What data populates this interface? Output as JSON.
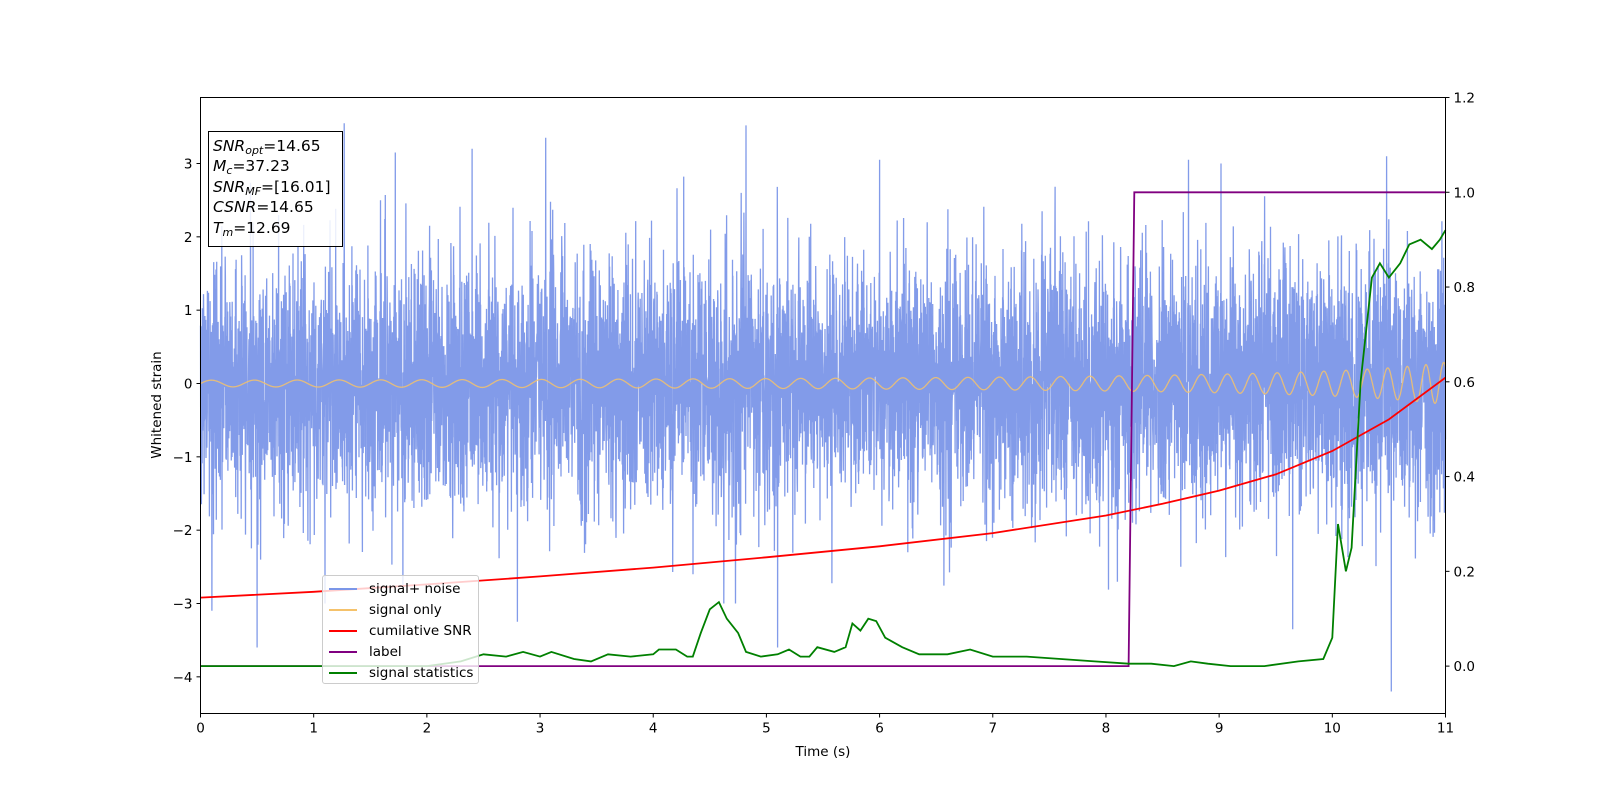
{
  "chart_data": {
    "type": "line",
    "xlabel": "Time (s)",
    "ylabel": "Whitened strain",
    "xlim": [
      0,
      11
    ],
    "ylim_left": [
      -4.5,
      3.9
    ],
    "ylim_right": [
      -0.1,
      1.2
    ],
    "x_ticks": [
      "0",
      "1",
      "2",
      "3",
      "4",
      "5",
      "6",
      "7",
      "8",
      "9",
      "10",
      "11"
    ],
    "y_ticks_left": [
      "−4",
      "−3",
      "−2",
      "−1",
      "0",
      "1",
      "2",
      "3"
    ],
    "y_ticks_right": [
      "0.0",
      "0.2",
      "0.4",
      "0.6",
      "0.8",
      "1.0",
      "1.2"
    ],
    "legend_position": "lower-left",
    "annotations": {
      "snr_opt": "=14.65",
      "mc": "=37.23",
      "snr_mf": "=[16.01]",
      "csnr": "=14.65",
      "tm": "=12.69"
    },
    "series": [
      {
        "name": "signal+ noise",
        "axis": "left",
        "color": "#7b96e8",
        "description": "noise trace, approximately Gaussian, core between -1.3 and 1.3 with spikes to about ±3.5 (one dip to -4.2 near t=10.5)",
        "envelope_outliers": [
          [
            1.27,
            3.55
          ],
          [
            0.5,
            -3.6
          ],
          [
            0.1,
            -3.1
          ],
          [
            4.82,
            3.52
          ],
          [
            5.1,
            -3.6
          ],
          [
            10.52,
            -4.2
          ],
          [
            9.65,
            -3.35
          ],
          [
            3.05,
            3.35
          ],
          [
            2.4,
            3.2
          ],
          [
            1.72,
            3.15
          ],
          [
            6.0,
            3.05
          ],
          [
            8.73,
            3.05
          ],
          [
            10.48,
            3.1
          ],
          [
            1.1,
            -3.0
          ],
          [
            2.8,
            -3.25
          ]
        ]
      },
      {
        "name": "signal only",
        "axis": "left",
        "color": "#f5c26b",
        "description": "chirp oscillation around 0, amplitude growing from 0.05 to 0.3, frequency rising toward t=11"
      },
      {
        "name": "cumilative SNR",
        "axis": "left",
        "color": "#ff0000",
        "points": [
          [
            0,
            -2.92
          ],
          [
            1,
            -2.84
          ],
          [
            2,
            -2.74
          ],
          [
            3,
            -2.63
          ],
          [
            4,
            -2.51
          ],
          [
            5,
            -2.37
          ],
          [
            6,
            -2.22
          ],
          [
            7,
            -2.04
          ],
          [
            8,
            -1.8
          ],
          [
            8.5,
            -1.64
          ],
          [
            9,
            -1.46
          ],
          [
            9.5,
            -1.24
          ],
          [
            10,
            -0.92
          ],
          [
            10.5,
            -0.49
          ],
          [
            11,
            0.08
          ]
        ]
      },
      {
        "name": "label",
        "axis": "right",
        "color": "#800080",
        "points": [
          [
            0,
            0.0
          ],
          [
            8.2,
            0.0
          ],
          [
            8.25,
            1.0
          ],
          [
            11,
            1.0
          ]
        ]
      },
      {
        "name": "signal statistics",
        "axis": "right",
        "color": "#008000",
        "points": [
          [
            0,
            0.0
          ],
          [
            2.0,
            0.0
          ],
          [
            2.3,
            0.01
          ],
          [
            2.5,
            0.025
          ],
          [
            2.7,
            0.02
          ],
          [
            2.85,
            0.03
          ],
          [
            3.0,
            0.02
          ],
          [
            3.1,
            0.03
          ],
          [
            3.3,
            0.015
          ],
          [
            3.45,
            0.01
          ],
          [
            3.6,
            0.025
          ],
          [
            3.8,
            0.02
          ],
          [
            4.0,
            0.025
          ],
          [
            4.05,
            0.035
          ],
          [
            4.2,
            0.035
          ],
          [
            4.3,
            0.02
          ],
          [
            4.35,
            0.02
          ],
          [
            4.42,
            0.07
          ],
          [
            4.5,
            0.12
          ],
          [
            4.58,
            0.135
          ],
          [
            4.65,
            0.1
          ],
          [
            4.75,
            0.07
          ],
          [
            4.82,
            0.03
          ],
          [
            4.95,
            0.02
          ],
          [
            5.1,
            0.025
          ],
          [
            5.2,
            0.035
          ],
          [
            5.3,
            0.02
          ],
          [
            5.38,
            0.02
          ],
          [
            5.45,
            0.04
          ],
          [
            5.6,
            0.03
          ],
          [
            5.7,
            0.04
          ],
          [
            5.76,
            0.09
          ],
          [
            5.83,
            0.075
          ],
          [
            5.9,
            0.1
          ],
          [
            5.97,
            0.095
          ],
          [
            6.05,
            0.06
          ],
          [
            6.2,
            0.04
          ],
          [
            6.35,
            0.025
          ],
          [
            6.6,
            0.025
          ],
          [
            6.8,
            0.035
          ],
          [
            7.0,
            0.02
          ],
          [
            7.3,
            0.02
          ],
          [
            7.6,
            0.015
          ],
          [
            7.9,
            0.01
          ],
          [
            8.2,
            0.005
          ],
          [
            8.4,
            0.005
          ],
          [
            8.6,
            0.0
          ],
          [
            8.75,
            0.01
          ],
          [
            8.9,
            0.005
          ],
          [
            9.1,
            0.0
          ],
          [
            9.4,
            0.0
          ],
          [
            9.7,
            0.01
          ],
          [
            9.92,
            0.015
          ],
          [
            10.0,
            0.06
          ],
          [
            10.05,
            0.3
          ],
          [
            10.12,
            0.2
          ],
          [
            10.17,
            0.25
          ],
          [
            10.25,
            0.6
          ],
          [
            10.35,
            0.82
          ],
          [
            10.42,
            0.85
          ],
          [
            10.5,
            0.82
          ],
          [
            10.6,
            0.85
          ],
          [
            10.68,
            0.89
          ],
          [
            10.78,
            0.9
          ],
          [
            10.88,
            0.88
          ],
          [
            10.95,
            0.9
          ],
          [
            11.0,
            0.92
          ]
        ]
      }
    ]
  }
}
